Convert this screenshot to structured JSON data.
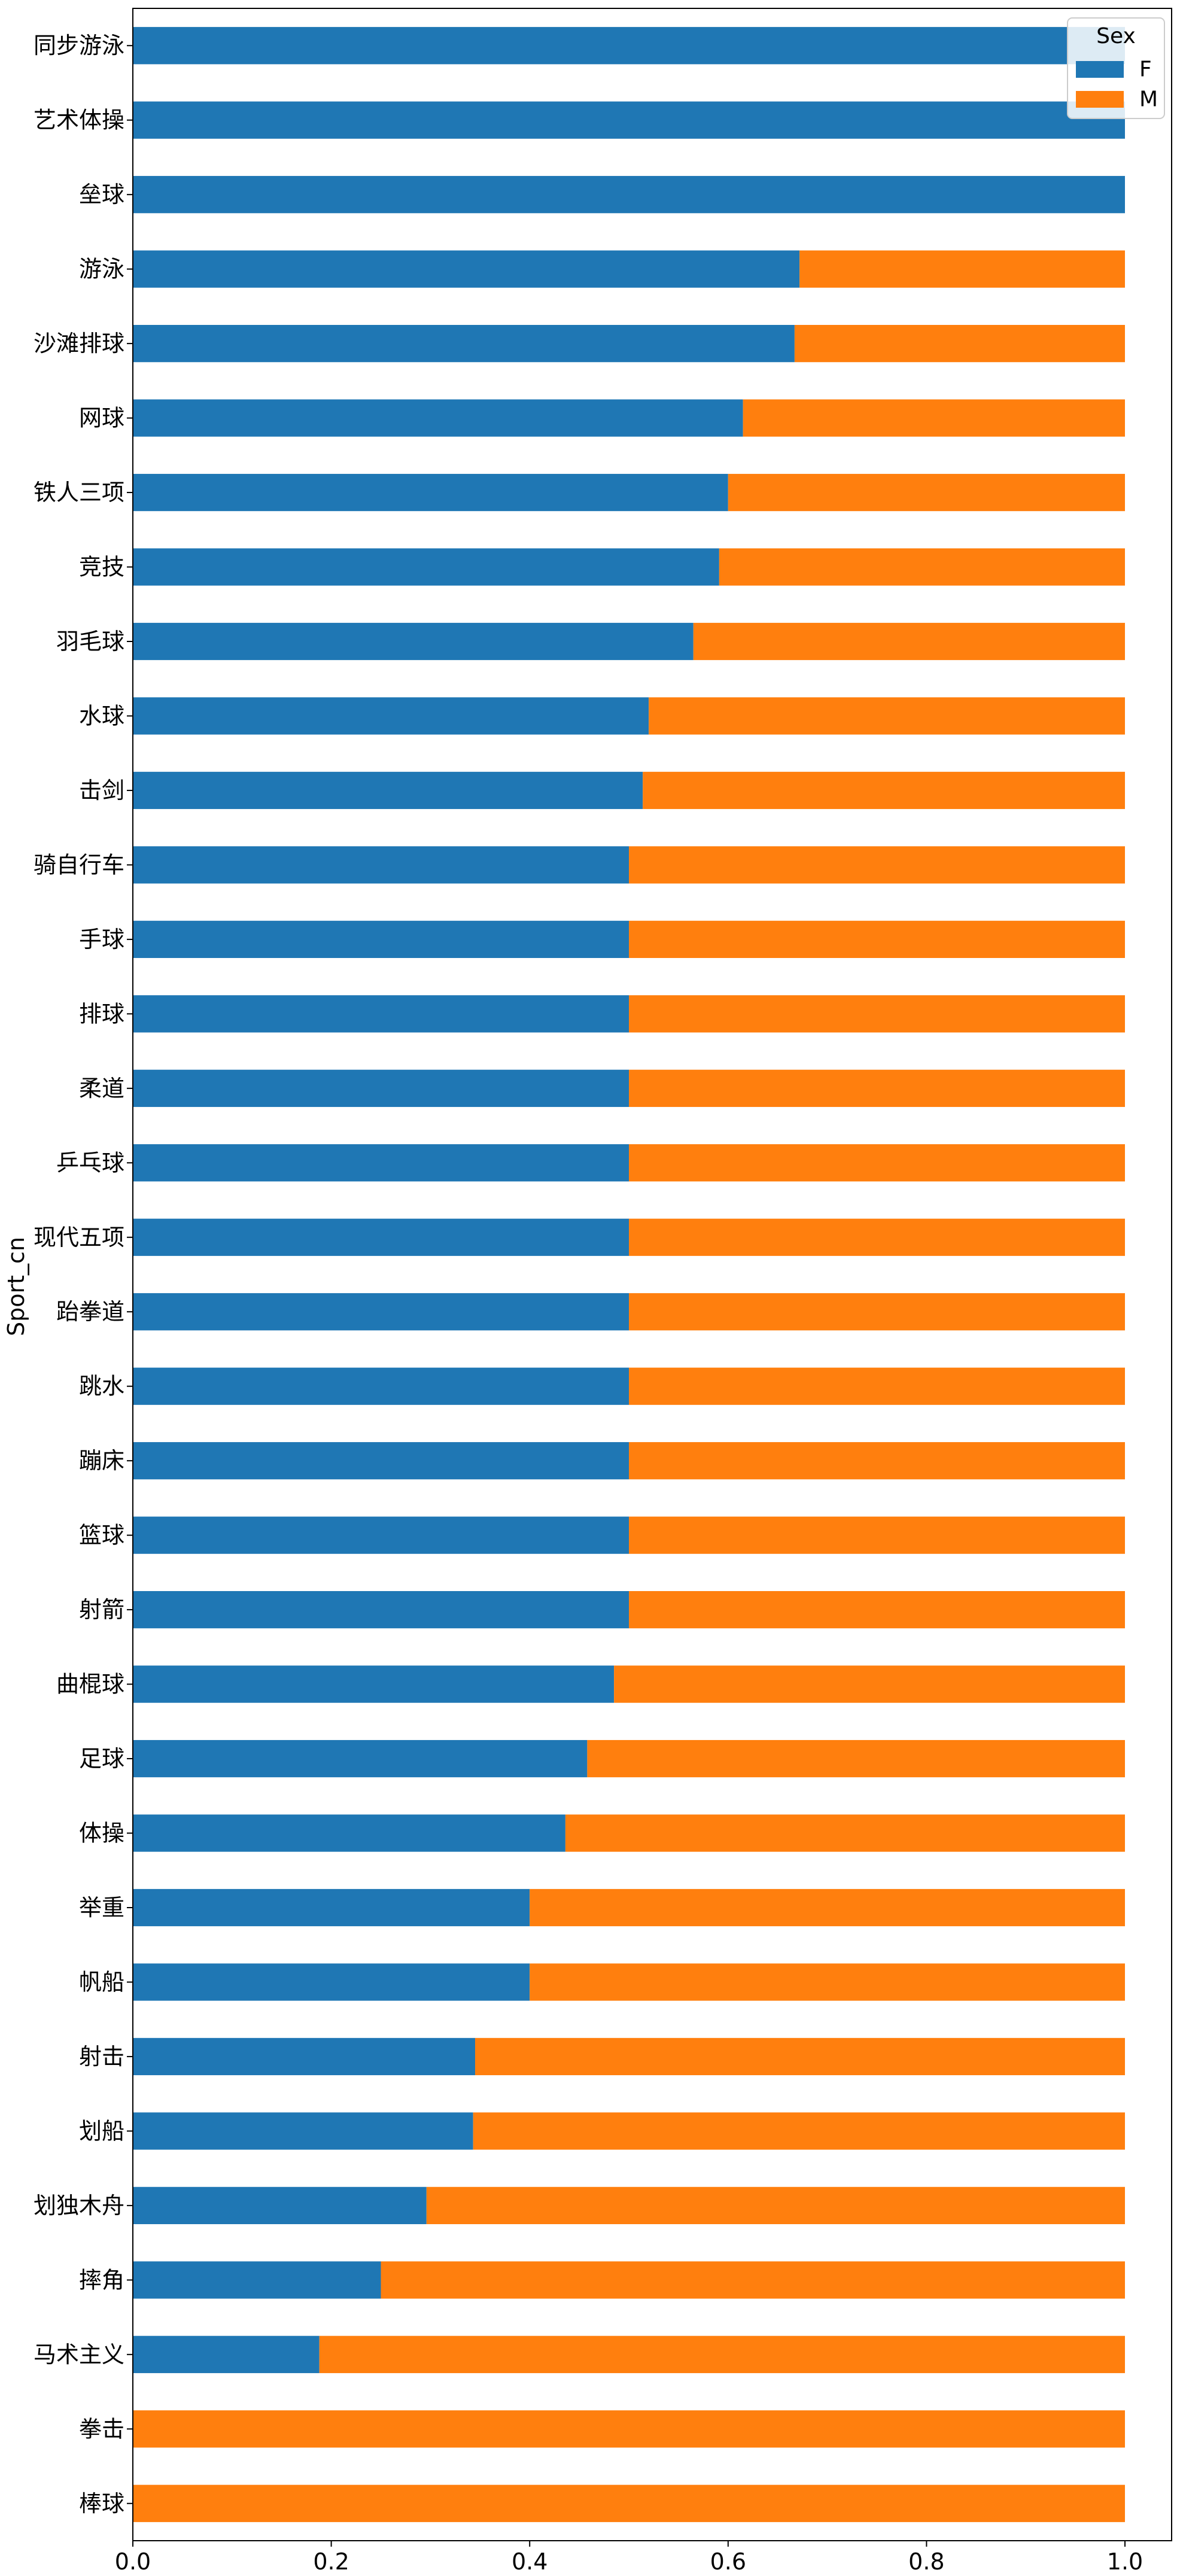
{
  "chart_data": {
    "type": "bar",
    "orientation": "horizontal",
    "stacked": true,
    "title": "",
    "xlabel": "",
    "ylabel": "Sport_cn",
    "xlim": [
      0.0,
      1.0
    ],
    "xticks": [
      "0.0",
      "0.2",
      "0.4",
      "0.6",
      "0.8",
      "1.0"
    ],
    "grid": false,
    "legend_position": "top-right",
    "legend_title": "Sex",
    "categories": [
      "同步游泳",
      "艺术体操",
      "垒球",
      "游泳",
      "沙滩排球",
      "网球",
      "铁人三项",
      "竞技",
      "羽毛球",
      "水球",
      "击剑",
      "骑自行车",
      "手球",
      "排球",
      "柔道",
      "乒乓球",
      "现代五项",
      "跆拳道",
      "跳水",
      "蹦床",
      "篮球",
      "射箭",
      "曲棍球",
      "足球",
      "体操",
      "举重",
      "帆船",
      "射击",
      "划船",
      "划独木舟",
      "摔角",
      "马术主义",
      "拳击",
      "棒球"
    ],
    "series": [
      {
        "name": "F",
        "color": "#1f77b4",
        "values": [
          1.0,
          1.0,
          1.0,
          0.672,
          0.667,
          0.615,
          0.6,
          0.591,
          0.565,
          0.52,
          0.514,
          0.5,
          0.5,
          0.5,
          0.5,
          0.5,
          0.5,
          0.5,
          0.5,
          0.5,
          0.5,
          0.5,
          0.485,
          0.458,
          0.436,
          0.4,
          0.4,
          0.345,
          0.343,
          0.296,
          0.25,
          0.188,
          0.0,
          0.0
        ]
      },
      {
        "name": "M",
        "color": "#ff7f0e",
        "values": [
          0.0,
          0.0,
          0.0,
          0.328,
          0.333,
          0.385,
          0.4,
          0.409,
          0.435,
          0.48,
          0.486,
          0.5,
          0.5,
          0.5,
          0.5,
          0.5,
          0.5,
          0.5,
          0.5,
          0.5,
          0.5,
          0.5,
          0.515,
          0.542,
          0.564,
          0.6,
          0.6,
          0.655,
          0.657,
          0.704,
          0.75,
          0.812,
          1.0,
          1.0
        ]
      }
    ]
  }
}
